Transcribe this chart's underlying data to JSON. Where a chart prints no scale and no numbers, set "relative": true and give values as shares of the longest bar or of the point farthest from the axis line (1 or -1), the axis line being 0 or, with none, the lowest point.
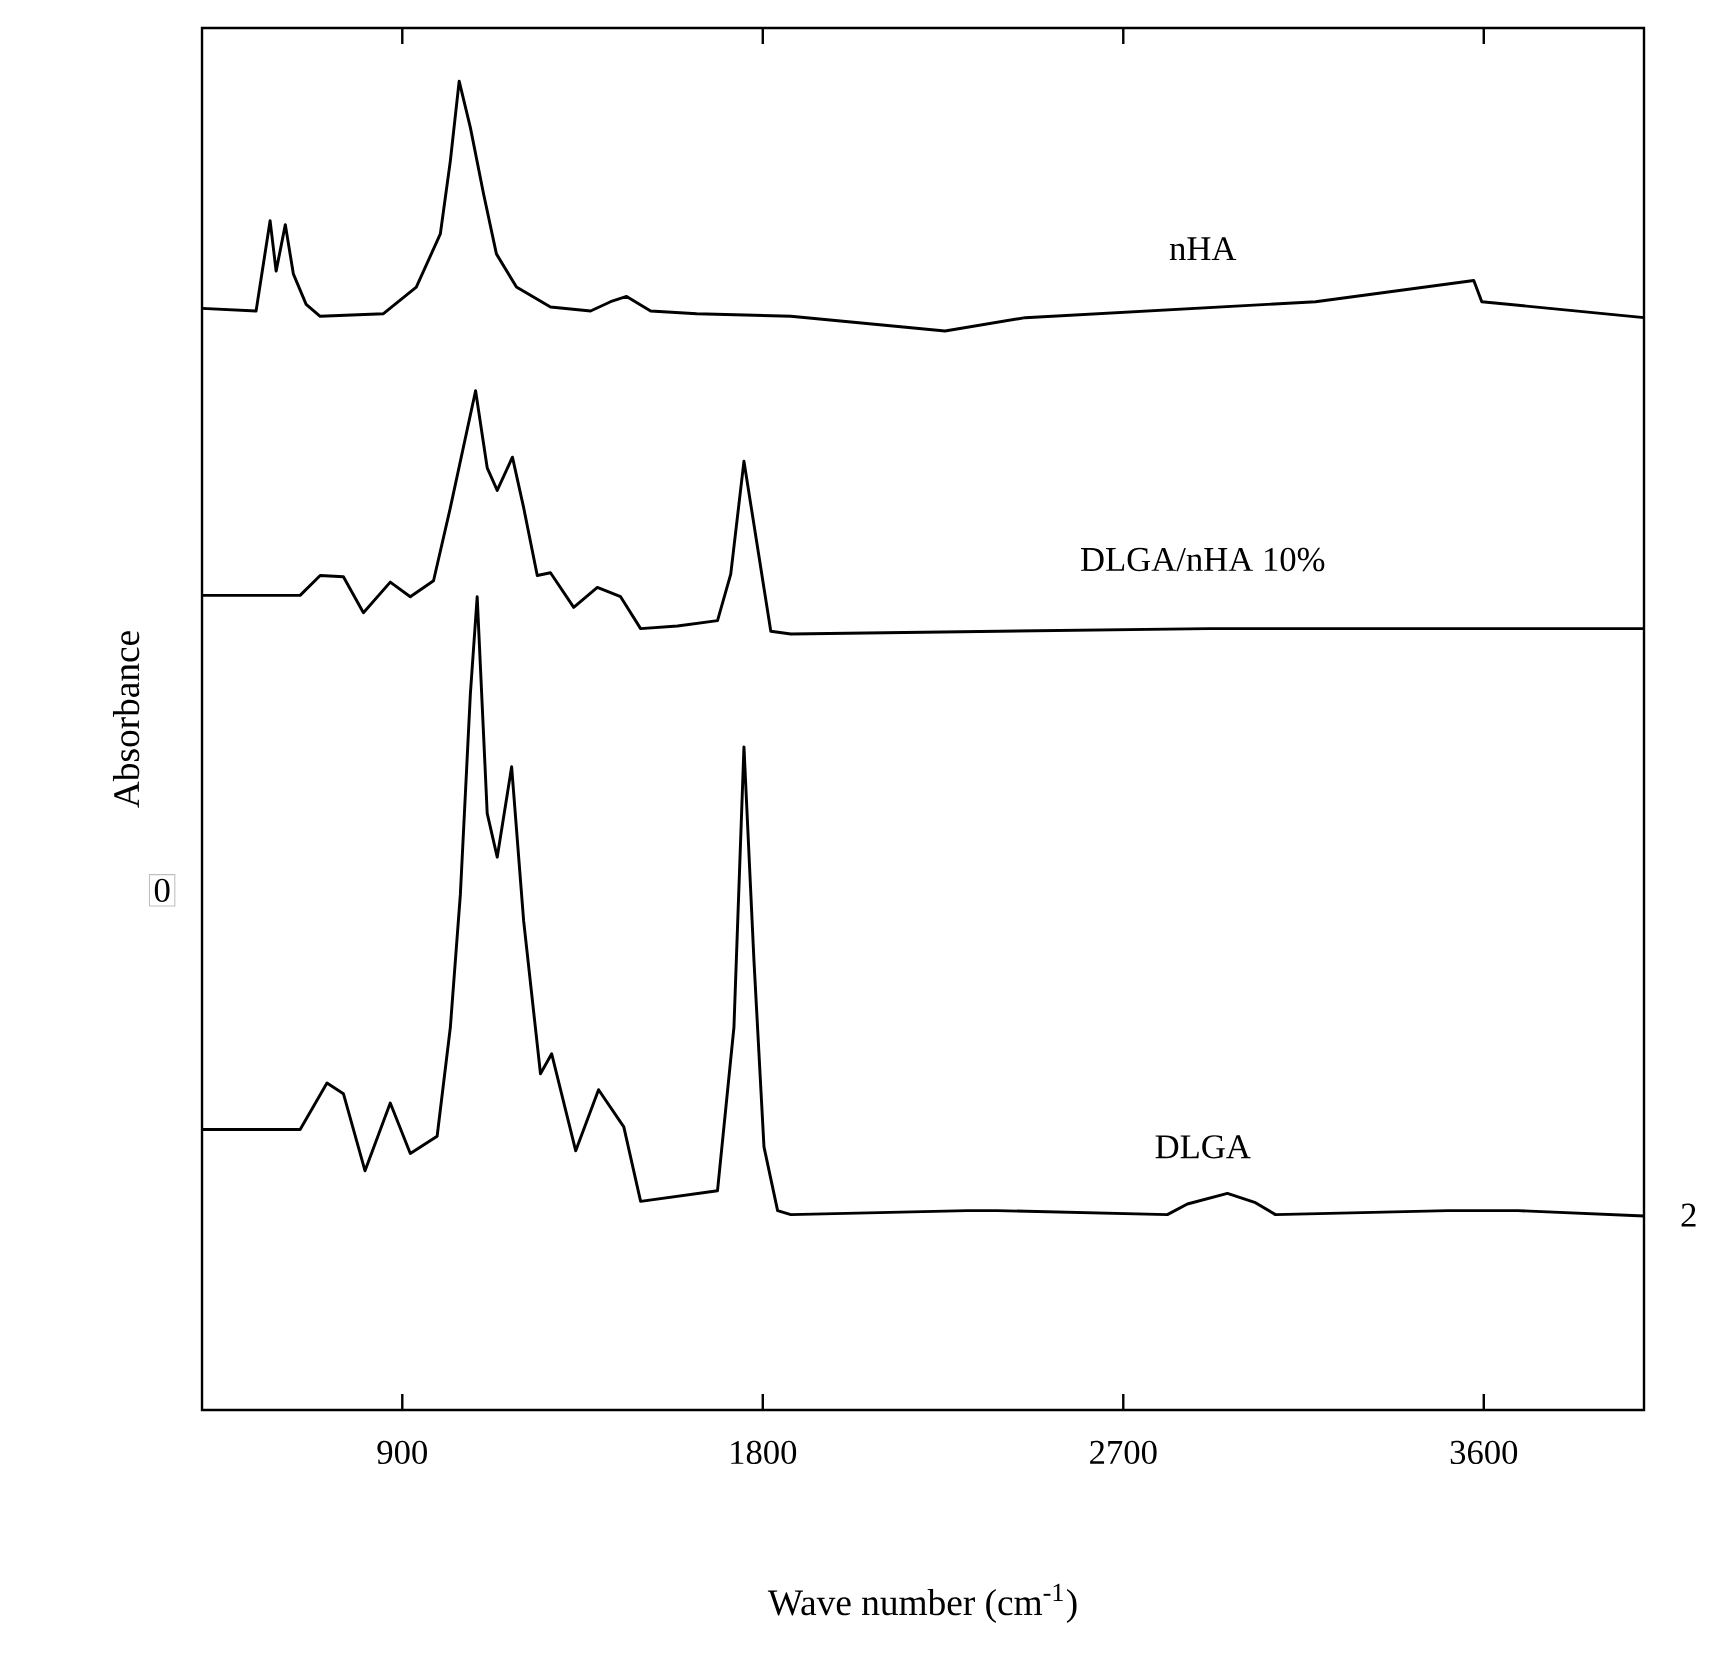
{
  "chart_data": {
    "type": "line",
    "relative": true,
    "xlabel": "Wave number (cm$^{-1}$)",
    "ylabel": "Absorbance",
    "xlim": [
      400,
      4000
    ],
    "xticks": [
      900,
      1800,
      2700,
      3600
    ],
    "grid": false,
    "legend": false,
    "marker": "none",
    "annotations": [
      "0",
      "2"
    ],
    "series": [
      {
        "name": "nHA",
        "color": "#000000",
        "x": [
          400,
          535,
          570,
          585,
          608,
          628,
          660,
          695,
          853,
          935,
          995,
          1020,
          1042,
          1070,
          1103,
          1135,
          1185,
          1270,
          1370,
          1420,
          1460,
          1520,
          1635,
          1870,
          2255,
          2455,
          3180,
          3575,
          3595,
          4000
        ],
        "values": [
          0.829,
          0.827,
          0.895,
          0.857,
          0.892,
          0.855,
          0.832,
          0.823,
          0.825,
          0.845,
          0.885,
          0.94,
          1.0,
          0.965,
          0.915,
          0.87,
          0.845,
          0.83,
          0.827,
          0.834,
          0.838,
          0.827,
          0.825,
          0.823,
          0.812,
          0.822,
          0.834,
          0.85,
          0.834,
          0.822
        ]
      },
      {
        "name": "DLGA/nHA 10%",
        "color": "#000000",
        "x": [
          400,
          645,
          695,
          753,
          803,
          870,
          920,
          978,
          1020,
          1083,
          1112,
          1137,
          1175,
          1203,
          1237,
          1270,
          1328,
          1387,
          1445,
          1495,
          1587,
          1687,
          1720,
          1753,
          1787,
          1820,
          1870,
          2915,
          3030,
          3365,
          4000
        ],
        "values": [
          0.613,
          0.613,
          0.628,
          0.627,
          0.6,
          0.623,
          0.612,
          0.624,
          0.679,
          0.767,
          0.709,
          0.692,
          0.717,
          0.679,
          0.628,
          0.63,
          0.604,
          0.619,
          0.612,
          0.588,
          0.59,
          0.594,
          0.629,
          0.714,
          0.649,
          0.586,
          0.584,
          0.588,
          0.588,
          0.588,
          0.588
        ]
      },
      {
        "name": "DLGA",
        "color": "#000000",
        "x": [
          400,
          645,
          712,
          753,
          807,
          870,
          920,
          987,
          1020,
          1045,
          1070,
          1087,
          1112,
          1137,
          1173,
          1203,
          1245,
          1273,
          1333,
          1390,
          1453,
          1495,
          1687,
          1728,
          1753,
          1778,
          1803,
          1837,
          1870,
          2310,
          2385,
          2810,
          2860,
          2960,
          3030,
          3080,
          3510,
          3685,
          4000
        ],
        "values": [
          0.211,
          0.211,
          0.246,
          0.238,
          0.18,
          0.231,
          0.193,
          0.206,
          0.288,
          0.388,
          0.539,
          0.612,
          0.449,
          0.416,
          0.484,
          0.368,
          0.253,
          0.268,
          0.195,
          0.241,
          0.213,
          0.157,
          0.165,
          0.288,
          0.499,
          0.338,
          0.198,
          0.15,
          0.147,
          0.15,
          0.15,
          0.147,
          0.155,
          0.163,
          0.156,
          0.147,
          0.15,
          0.15,
          0.146
        ]
      }
    ]
  }
}
